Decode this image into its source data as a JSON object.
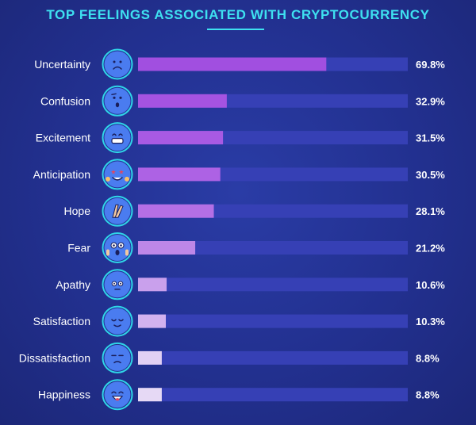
{
  "chart_data": {
    "type": "bar",
    "orientation": "horizontal",
    "title": "TOP FEELINGS ASSOCIATED WITH CRYPTOCURRENCY",
    "xlabel": "",
    "ylabel": "",
    "xlim": [
      0,
      100
    ],
    "value_suffix": "%",
    "categories": [
      "Uncertainty",
      "Confusion",
      "Excitement",
      "Anticipation",
      "Hope",
      "Fear",
      "Apathy",
      "Satisfaction",
      "Dissatisfaction",
      "Happiness"
    ],
    "values": [
      69.8,
      32.9,
      31.5,
      30.5,
      28.1,
      21.2,
      10.6,
      10.3,
      8.8,
      8.8
    ],
    "value_labels": [
      "69.8%",
      "32.9%",
      "31.5%",
      "30.5%",
      "28.1%",
      "21.2%",
      "10.6%",
      "10.3%",
      "8.8%",
      "8.8%"
    ],
    "icons": [
      "frowning-face-icon",
      "confused-face-icon",
      "grinning-face-icon",
      "star-struck-face-icon",
      "crossed-fingers-icon",
      "screaming-face-icon",
      "neutral-face-icon",
      "relieved-face-icon",
      "unamused-face-icon",
      "happy-face-icon"
    ],
    "bar_colors": [
      "#a14fe0",
      "#a553e1",
      "#a85ae3",
      "#ad62e4",
      "#b46fe5",
      "#bd87e8",
      "#c9a0ec",
      "#d2b2ef",
      "#e1d0f4",
      "#e6d9f5"
    ],
    "track_color": "#3640b5",
    "icon_color": "#4a7cf0",
    "icon_ring_color": "#2fd5e8",
    "grid": false,
    "legend": "none"
  }
}
